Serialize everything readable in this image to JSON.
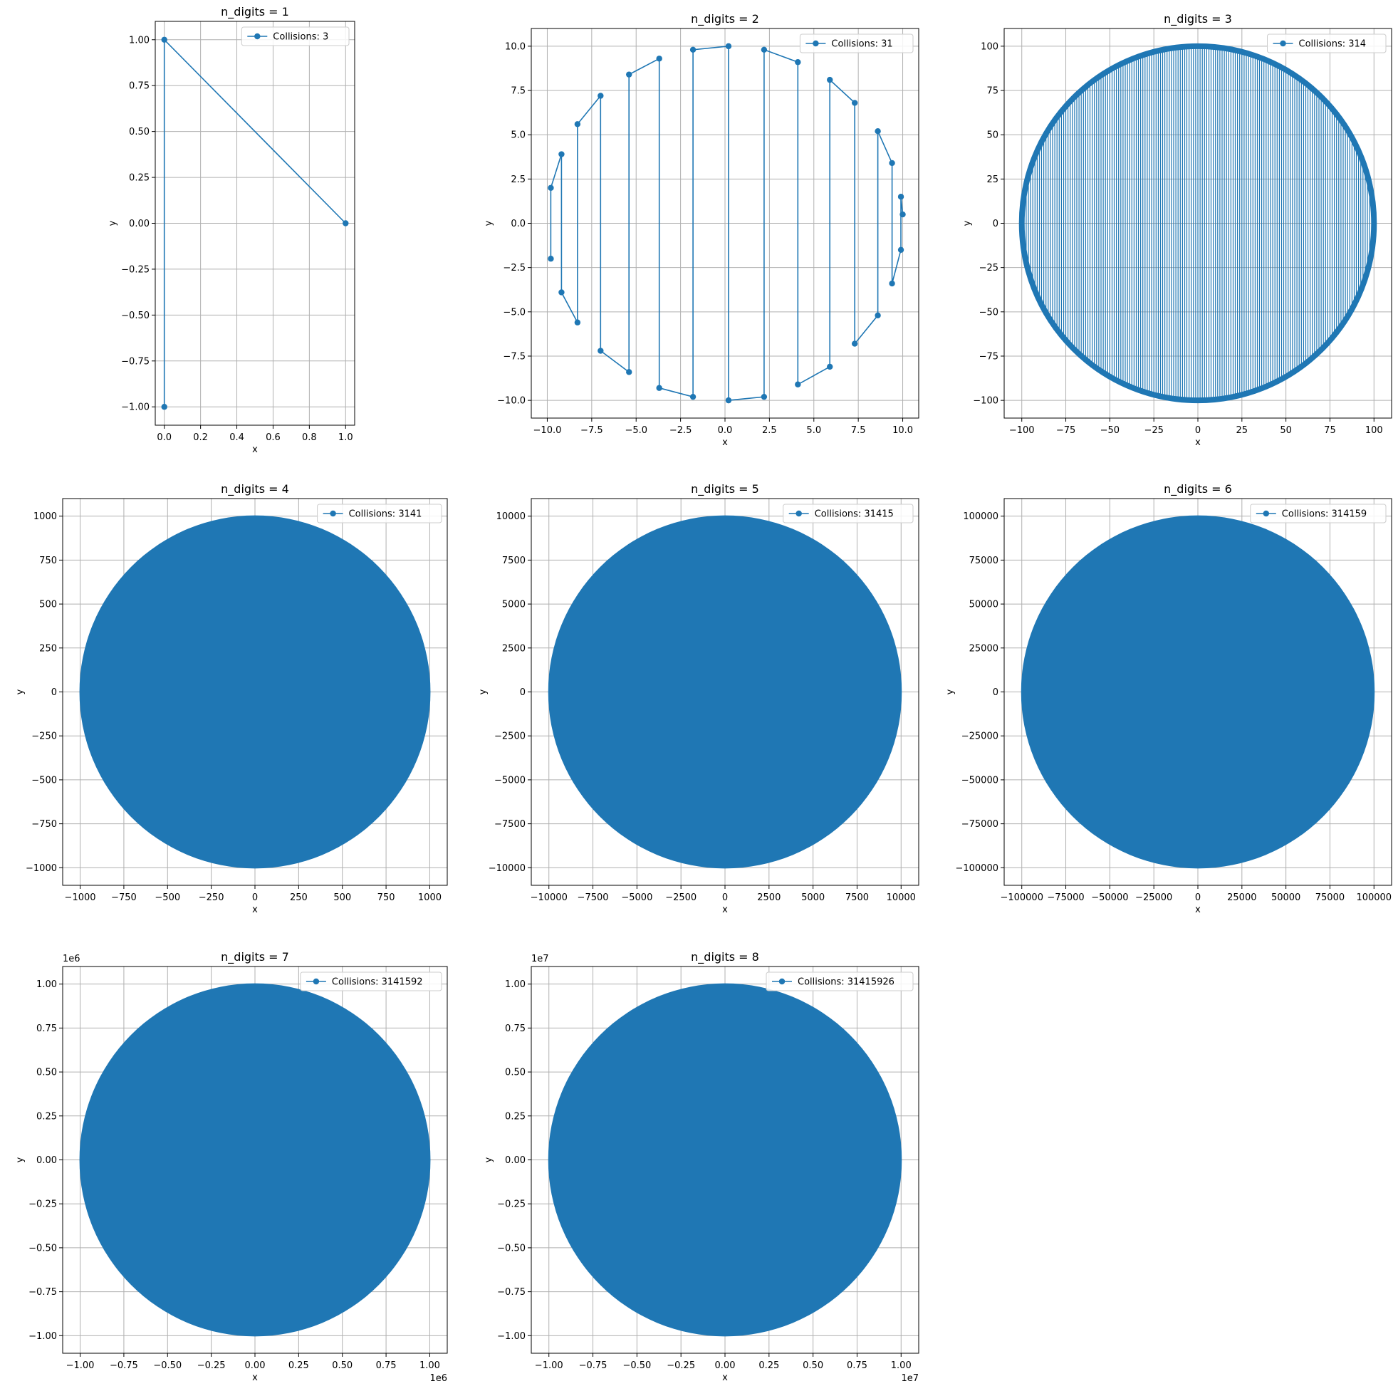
{
  "accent_color": "#1f77b4",
  "grid_color": "#b0b0b0",
  "chart_data": [
    {
      "type": "line",
      "title": "n_digits = 1",
      "xlabel": "x",
      "ylabel": "y",
      "legend": "Collisions: 3",
      "legend_loc": "upper right",
      "grid": true,
      "markers": true,
      "xlim": [
        -0.05,
        1.05
      ],
      "ylim": [
        -1.1,
        1.1
      ],
      "xticks": [
        0.0,
        0.2,
        0.4,
        0.6,
        0.8,
        1.0
      ],
      "xtick_labels": [
        "0.0",
        "0.2",
        "0.4",
        "0.6",
        "0.8",
        "1.0"
      ],
      "yticks": [
        -1.0,
        -0.75,
        -0.5,
        -0.25,
        0.0,
        0.25,
        0.5,
        0.75,
        1.0
      ],
      "ytick_labels": [
        "−1.00",
        "−0.75",
        "−0.50",
        "−0.25",
        "0.00",
        "0.25",
        "0.50",
        "0.75",
        "1.00"
      ],
      "x": [
        0.0,
        0.0,
        1.0
      ],
      "y": [
        -1.0,
        1.0,
        0.0
      ]
    },
    {
      "type": "line",
      "title": "n_digits = 2",
      "xlabel": "x",
      "ylabel": "y",
      "legend": "Collisions: 31",
      "legend_loc": "upper right",
      "grid": true,
      "markers": true,
      "xlim": [
        -10.9,
        10.9
      ],
      "ylim": [
        -11.0,
        11.0
      ],
      "xticks": [
        -10.0,
        -7.5,
        -5.0,
        -2.5,
        0.0,
        2.5,
        5.0,
        7.5,
        10.0
      ],
      "xtick_labels": [
        "−10.0",
        "−7.5",
        "−5.0",
        "−2.5",
        "0.0",
        "2.5",
        "5.0",
        "7.5",
        "10.0"
      ],
      "yticks": [
        -10.0,
        -7.5,
        -5.0,
        -2.5,
        0.0,
        2.5,
        5.0,
        7.5,
        10.0
      ],
      "ytick_labels": [
        "−10.0",
        "−7.5",
        "−5.0",
        "−2.5",
        "0.0",
        "2.5",
        "5.0",
        "7.5",
        "10.0"
      ],
      "x": [
        -9.8,
        -9.8,
        -9.2,
        -9.2,
        -8.3,
        -8.3,
        -7.0,
        -7.0,
        -5.4,
        -5.4,
        -3.7,
        -3.7,
        -1.8,
        -1.8,
        0.2,
        0.2,
        2.2,
        2.2,
        4.1,
        4.1,
        5.9,
        5.9,
        7.3,
        7.3,
        8.6,
        8.6,
        9.4,
        9.4,
        9.9,
        9.9,
        10.0
      ],
      "y": [
        -2.0,
        2.0,
        3.9,
        -3.9,
        -5.6,
        5.6,
        7.2,
        -7.2,
        -8.4,
        8.4,
        9.3,
        -9.3,
        -9.8,
        9.8,
        10.0,
        -10.0,
        -9.8,
        9.8,
        9.1,
        -9.1,
        -8.1,
        8.1,
        6.8,
        -6.8,
        -5.2,
        5.2,
        3.4,
        -3.4,
        -1.5,
        1.5,
        0.5
      ]
    },
    {
      "type": "line",
      "title": "n_digits = 3",
      "xlabel": "x",
      "ylabel": "y",
      "legend": "Collisions: 314",
      "legend_loc": "upper right",
      "grid": true,
      "markers": true,
      "circle_radius": 100,
      "n_points": 314,
      "xlim": [
        -110,
        110
      ],
      "ylim": [
        -110,
        110
      ],
      "xticks": [
        -100,
        -75,
        -50,
        -25,
        0,
        25,
        50,
        75,
        100
      ],
      "xtick_labels": [
        "−100",
        "−75",
        "−50",
        "−25",
        "0",
        "25",
        "50",
        "75",
        "100"
      ],
      "yticks": [
        -100,
        -75,
        -50,
        -25,
        0,
        25,
        50,
        75,
        100
      ],
      "ytick_labels": [
        "−100",
        "−75",
        "−50",
        "−25",
        "0",
        "25",
        "50",
        "75",
        "100"
      ]
    },
    {
      "type": "line",
      "title": "n_digits = 4",
      "xlabel": "x",
      "ylabel": "y",
      "legend": "Collisions: 3141",
      "legend_loc": "upper right",
      "grid": true,
      "markers": true,
      "circle_radius": 1000,
      "n_points": 3141,
      "xlim": [
        -1100,
        1100
      ],
      "ylim": [
        -1100,
        1100
      ],
      "xticks": [
        -1000,
        -750,
        -500,
        -250,
        0,
        250,
        500,
        750,
        1000
      ],
      "xtick_labels": [
        "−1000",
        "−750",
        "−500",
        "−250",
        "0",
        "250",
        "500",
        "750",
        "1000"
      ],
      "yticks": [
        -1000,
        -750,
        -500,
        -250,
        0,
        250,
        500,
        750,
        1000
      ],
      "ytick_labels": [
        "−1000",
        "−750",
        "−500",
        "−250",
        "0",
        "250",
        "500",
        "750",
        "1000"
      ]
    },
    {
      "type": "line",
      "title": "n_digits = 5",
      "xlabel": "x",
      "ylabel": "y",
      "legend": "Collisions: 31415",
      "legend_loc": "upper right",
      "grid": true,
      "markers": true,
      "circle_radius": 10000,
      "n_points": 31415,
      "xlim": [
        -11000,
        11000
      ],
      "ylim": [
        -11000,
        11000
      ],
      "xticks": [
        -10000,
        -7500,
        -5000,
        -2500,
        0,
        2500,
        5000,
        7500,
        10000
      ],
      "xtick_labels": [
        "−10000",
        "−7500",
        "−5000",
        "−2500",
        "0",
        "2500",
        "5000",
        "7500",
        "10000"
      ],
      "yticks": [
        -10000,
        -7500,
        -5000,
        -2500,
        0,
        2500,
        5000,
        7500,
        10000
      ],
      "ytick_labels": [
        "−10000",
        "−7500",
        "−5000",
        "−2500",
        "0",
        "2500",
        "5000",
        "7500",
        "10000"
      ]
    },
    {
      "type": "line",
      "title": "n_digits = 6",
      "xlabel": "x",
      "ylabel": "y",
      "legend": "Collisions: 314159",
      "legend_loc": "upper right",
      "grid": true,
      "markers": true,
      "circle_radius": 100000,
      "n_points": 314159,
      "xlim": [
        -110000,
        110000
      ],
      "ylim": [
        -110000,
        110000
      ],
      "xticks": [
        -100000,
        -75000,
        -50000,
        -25000,
        0,
        25000,
        50000,
        75000,
        100000
      ],
      "xtick_labels": [
        "−100000",
        "−75000",
        "−50000",
        "−25000",
        "0",
        "25000",
        "50000",
        "75000",
        "100000"
      ],
      "yticks": [
        -100000,
        -75000,
        -50000,
        -25000,
        0,
        25000,
        50000,
        75000,
        100000
      ],
      "ytick_labels": [
        "−100000",
        "−75000",
        "−50000",
        "−25000",
        "0",
        "25000",
        "50000",
        "75000",
        "100000"
      ]
    },
    {
      "type": "line",
      "title": "n_digits = 7",
      "xlabel": "x",
      "ylabel": "y",
      "legend": "Collisions: 3141592",
      "legend_loc": "upper right",
      "grid": true,
      "markers": true,
      "circle_radius": 1000000,
      "n_points": 3141592,
      "x_offset_text": "1e6",
      "y_offset_text": "1e6",
      "xlim": [
        -1100000,
        1100000
      ],
      "ylim": [
        -1100000,
        1100000
      ],
      "xticks": [
        -1000000,
        -750000,
        -500000,
        -250000,
        0,
        250000,
        500000,
        750000,
        1000000
      ],
      "xtick_labels": [
        "−1.00",
        "−0.75",
        "−0.50",
        "−0.25",
        "0.00",
        "0.25",
        "0.50",
        "0.75",
        "1.00"
      ],
      "yticks": [
        -1000000,
        -750000,
        -500000,
        -250000,
        0,
        250000,
        500000,
        750000,
        1000000
      ],
      "ytick_labels": [
        "−1.00",
        "−0.75",
        "−0.50",
        "−0.25",
        "0.00",
        "0.25",
        "0.50",
        "0.75",
        "1.00"
      ]
    },
    {
      "type": "line",
      "title": "n_digits = 8",
      "xlabel": "x",
      "ylabel": "y",
      "legend": "Collisions: 31415926",
      "legend_loc": "upper right",
      "grid": true,
      "markers": true,
      "circle_radius": 10000000,
      "n_points": 31415926,
      "x_offset_text": "1e7",
      "y_offset_text": "1e7",
      "xlim": [
        -11000000,
        11000000
      ],
      "ylim": [
        -11000000,
        11000000
      ],
      "xticks": [
        -10000000,
        -7500000,
        -5000000,
        -2500000,
        0,
        2500000,
        5000000,
        7500000,
        10000000
      ],
      "xtick_labels": [
        "−1.00",
        "−0.75",
        "−0.50",
        "−0.25",
        "0.00",
        "0.25",
        "0.50",
        "0.75",
        "1.00"
      ],
      "yticks": [
        -10000000,
        -7500000,
        -5000000,
        -2500000,
        0,
        2500000,
        5000000,
        7500000,
        10000000
      ],
      "ytick_labels": [
        "−1.00",
        "−0.75",
        "−0.50",
        "−0.25",
        "0.00",
        "0.25",
        "0.50",
        "0.75",
        "1.00"
      ]
    }
  ]
}
